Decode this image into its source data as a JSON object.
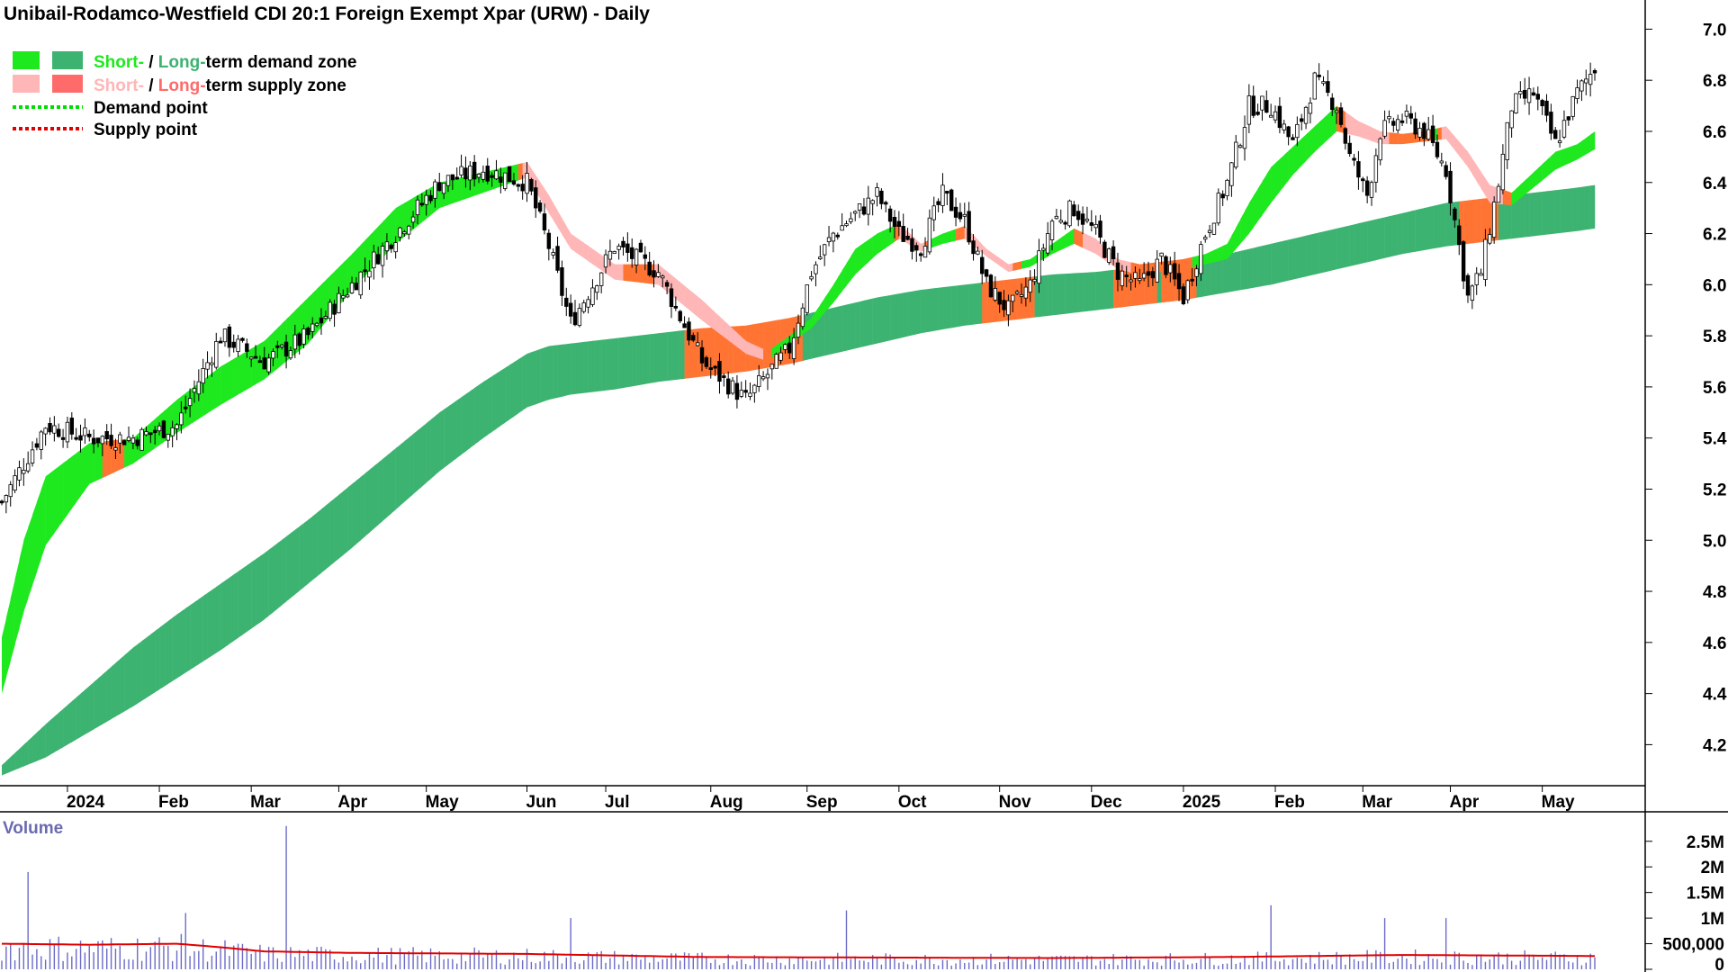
{
  "title": "Unibail-Rodamco-Westfield CDI 20:1 Foreign Exempt Xpar (URW) - Daily",
  "legend": {
    "demand_short": "Short-",
    "demand_sep": " / ",
    "demand_long": "Long-",
    "demand_rest": "term demand zone",
    "supply_short": "Short-",
    "supply_sep": " / ",
    "supply_long": "Long-",
    "supply_rest": "term supply zone",
    "demand_point": "Demand point",
    "supply_point": "Supply point"
  },
  "colors": {
    "short_demand": "#1ee81e",
    "long_demand": "#3cb371",
    "short_supply": "#ffb6b6",
    "long_supply": "#ff6b6b",
    "overlap_supply": "#ff7433",
    "volume_bar": "#6b6bc8",
    "volume_avg": "#e00000",
    "demand_point": "#00dd00",
    "supply_point": "#e00000",
    "volume_label": "#6a6ab0"
  },
  "chart_data": {
    "type": "candlestick",
    "y_ticks": [
      "7.0",
      "6.8",
      "6.6",
      "6.4",
      "6.2",
      "6.0",
      "5.8",
      "5.6",
      "5.4",
      "5.2",
      "5.0",
      "4.8",
      "4.6",
      "4.4",
      "4.2"
    ],
    "ylim": [
      4.05,
      7.1
    ],
    "x_ticks": [
      "2024",
      "Feb",
      "Mar",
      "Apr",
      "May",
      "Jun",
      "Jul",
      "Aug",
      "Sep",
      "Oct",
      "Nov",
      "Dec",
      "2025",
      "Feb",
      "Mar",
      "Apr",
      "May"
    ],
    "x_tick_index": [
      15,
      36,
      57,
      77,
      97,
      120,
      138,
      162,
      184,
      205,
      228,
      249,
      270,
      291,
      311,
      331,
      352
    ],
    "price_key_index": [
      0,
      10,
      20,
      30,
      40,
      50,
      60,
      70,
      80,
      90,
      100,
      110,
      120,
      125,
      130,
      140,
      150,
      160,
      170,
      180,
      185,
      190,
      200,
      205,
      210,
      215,
      220,
      225,
      230,
      235,
      240,
      245,
      250,
      255,
      260,
      265,
      270,
      275,
      280,
      285,
      290,
      295,
      300,
      305,
      308,
      312,
      315,
      320,
      325,
      330,
      335,
      338,
      342,
      345,
      350,
      355,
      360,
      364
    ],
    "price_key_close": [
      5.15,
      5.45,
      5.4,
      5.4,
      5.45,
      5.8,
      5.7,
      5.8,
      6.0,
      6.2,
      6.4,
      6.45,
      6.4,
      6.15,
      5.85,
      6.15,
      6.05,
      5.7,
      5.55,
      5.75,
      6.05,
      6.2,
      6.35,
      6.2,
      6.15,
      6.35,
      6.25,
      6.0,
      5.9,
      6.0,
      6.25,
      6.3,
      6.2,
      6.05,
      6.0,
      6.1,
      5.95,
      6.2,
      6.4,
      6.7,
      6.7,
      6.55,
      6.8,
      6.7,
      6.5,
      6.35,
      6.6,
      6.65,
      6.6,
      6.45,
      5.95,
      6.05,
      6.4,
      6.7,
      6.75,
      6.55,
      6.75,
      6.85
    ],
    "short_zone_key_index": [
      0,
      5,
      10,
      20,
      30,
      40,
      50,
      60,
      70,
      80,
      90,
      100,
      110,
      120,
      125,
      130,
      140,
      150,
      160,
      170,
      175,
      180,
      185,
      190,
      195,
      200,
      205,
      210,
      215,
      220,
      225,
      230,
      235,
      240,
      245,
      250,
      255,
      260,
      265,
      270,
      275,
      280,
      285,
      290,
      295,
      300,
      305,
      310,
      315,
      320,
      325,
      330,
      335,
      340,
      345,
      350,
      355,
      360,
      364
    ],
    "short_zone_key_upper": [
      4.62,
      5.0,
      5.25,
      5.38,
      5.4,
      5.55,
      5.68,
      5.78,
      5.95,
      6.12,
      6.3,
      6.4,
      6.44,
      6.48,
      6.35,
      6.2,
      6.08,
      6.08,
      5.94,
      5.78,
      5.74,
      5.8,
      5.87,
      6.0,
      6.14,
      6.2,
      6.24,
      6.16,
      6.2,
      6.23,
      6.14,
      6.08,
      6.1,
      6.16,
      6.22,
      6.18,
      6.1,
      6.08,
      6.09,
      6.1,
      6.12,
      6.16,
      6.32,
      6.46,
      6.54,
      6.62,
      6.7,
      6.64,
      6.6,
      6.59,
      6.6,
      6.62,
      6.52,
      6.39,
      6.36,
      6.44,
      6.52,
      6.55,
      6.6
    ],
    "short_zone_key_lower": [
      4.4,
      4.72,
      4.98,
      5.22,
      5.3,
      5.42,
      5.53,
      5.63,
      5.77,
      5.98,
      6.16,
      6.3,
      6.36,
      6.42,
      6.28,
      6.14,
      6.02,
      6.0,
      5.86,
      5.73,
      5.7,
      5.77,
      5.83,
      5.93,
      6.04,
      6.12,
      6.18,
      6.13,
      6.16,
      6.18,
      6.11,
      6.05,
      6.07,
      6.12,
      6.16,
      6.12,
      6.06,
      6.04,
      6.05,
      6.06,
      6.08,
      6.1,
      6.2,
      6.32,
      6.43,
      6.52,
      6.6,
      6.58,
      6.55,
      6.55,
      6.56,
      6.57,
      6.46,
      6.32,
      6.31,
      6.38,
      6.45,
      6.49,
      6.53
    ],
    "long_zone_key_index": [
      0,
      10,
      20,
      30,
      40,
      50,
      60,
      70,
      80,
      90,
      100,
      110,
      120,
      125,
      130,
      140,
      150,
      160,
      170,
      180,
      190,
      200,
      210,
      220,
      230,
      240,
      250,
      260,
      270,
      280,
      290,
      300,
      310,
      320,
      330,
      340,
      350,
      360,
      364
    ],
    "long_zone_key_upper": [
      4.12,
      4.28,
      4.43,
      4.58,
      4.71,
      4.83,
      4.95,
      5.08,
      5.22,
      5.36,
      5.5,
      5.62,
      5.73,
      5.76,
      5.77,
      5.79,
      5.81,
      5.83,
      5.84,
      5.87,
      5.91,
      5.95,
      5.98,
      6.0,
      6.02,
      6.04,
      6.05,
      6.07,
      6.09,
      6.12,
      6.16,
      6.2,
      6.24,
      6.28,
      6.32,
      6.34,
      6.36,
      6.38,
      6.39
    ],
    "long_zone_key_lower": [
      4.08,
      4.15,
      4.25,
      4.35,
      4.46,
      4.57,
      4.69,
      4.83,
      4.97,
      5.12,
      5.27,
      5.4,
      5.52,
      5.55,
      5.57,
      5.59,
      5.62,
      5.64,
      5.66,
      5.69,
      5.73,
      5.77,
      5.81,
      5.84,
      5.86,
      5.88,
      5.9,
      5.92,
      5.94,
      5.97,
      6.0,
      6.04,
      6.08,
      6.12,
      6.15,
      6.17,
      6.19,
      6.21,
      6.22
    ],
    "volume": {
      "label": "Volume",
      "ticks": [
        "2.5M",
        "2M",
        "1.5M",
        "1M",
        "500,000",
        "0"
      ],
      "tick_values": [
        2500000,
        2000000,
        1500000,
        1000000,
        500000,
        0
      ],
      "ylim": [
        0,
        2900000
      ],
      "spike_index": [
        6,
        42,
        65,
        130,
        193,
        290,
        316,
        330
      ],
      "spike_value": [
        1900000,
        1100000,
        2800000,
        1000000,
        1150000,
        1250000,
        1000000,
        1000000
      ],
      "avg_key_index": [
        0,
        20,
        40,
        50,
        60,
        80,
        120,
        160,
        200,
        240,
        280,
        320,
        364
      ],
      "avg_key_value": [
        500000,
        480000,
        500000,
        430000,
        350000,
        320000,
        300000,
        240000,
        230000,
        220000,
        240000,
        280000,
        260000
      ]
    }
  }
}
